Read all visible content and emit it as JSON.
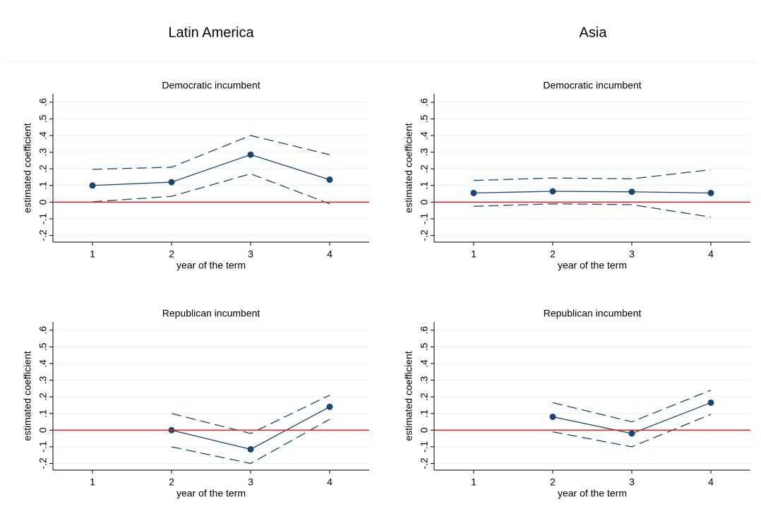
{
  "column_titles": [
    "Latin America",
    "Asia"
  ],
  "chart_data": [
    {
      "type": "line",
      "title": "Democratic incumbent",
      "x_label": "year of the term",
      "y_label": "estimated coefficient",
      "x": [
        1,
        2,
        3,
        4
      ],
      "xlim": [
        0.5,
        4.5
      ],
      "xticks": [
        1,
        2,
        3,
        4
      ],
      "ylim": [
        -0.24,
        0.65
      ],
      "yticks": [
        {
          "value": -0.2,
          "label": "-.2"
        },
        {
          "value": -0.1,
          "label": "-.1"
        },
        0,
        {
          "value": 0.1,
          "label": ".1"
        },
        {
          "value": 0.2,
          "label": ".2"
        },
        {
          "value": 0.3,
          "label": ".3"
        },
        {
          "value": 0.4,
          "label": ".4"
        },
        {
          "value": 0.5,
          "label": ".5"
        },
        {
          "value": 0.6,
          "label": ".6"
        }
      ],
      "grid": true,
      "hline": 0,
      "hline_color": "#e8191f",
      "series": [
        {
          "color": "#1a476f",
          "style": "dashed",
          "values": [
            0.197,
            0.21,
            0.4,
            0.285
          ]
        },
        {
          "color": "#1a476f",
          "style": "solid",
          "markers": true,
          "values": [
            0.1,
            0.12,
            0.285,
            0.135
          ]
        },
        {
          "color": "#1a476f",
          "style": "dashed",
          "values": [
            0.002,
            0.035,
            0.17,
            -0.01
          ]
        }
      ]
    },
    {
      "type": "line",
      "title": "Democratic incumbent",
      "x_label": "year of the term",
      "y_label": "estimated coefficient",
      "x": [
        1,
        2,
        3,
        4
      ],
      "xlim": [
        0.5,
        4.5
      ],
      "xticks": [
        1,
        2,
        3,
        4
      ],
      "ylim": [
        -0.24,
        0.65
      ],
      "yticks": [
        {
          "value": -0.2,
          "label": "-.2"
        },
        {
          "value": -0.1,
          "label": "-.1"
        },
        0,
        {
          "value": 0.1,
          "label": ".1"
        },
        {
          "value": 0.2,
          "label": ".2"
        },
        {
          "value": 0.3,
          "label": ".3"
        },
        {
          "value": 0.4,
          "label": ".4"
        },
        {
          "value": 0.5,
          "label": ".5"
        },
        {
          "value": 0.6,
          "label": ".6"
        }
      ],
      "grid": true,
      "hline": 0,
      "hline_color": "#e8191f",
      "series": [
        {
          "color": "#1a476f",
          "style": "dashed",
          "values": [
            0.13,
            0.145,
            0.14,
            0.195
          ]
        },
        {
          "color": "#1a476f",
          "style": "solid",
          "markers": true,
          "values": [
            0.055,
            0.065,
            0.062,
            0.055
          ]
        },
        {
          "color": "#1a476f",
          "style": "dashed",
          "values": [
            -0.025,
            -0.01,
            -0.015,
            -0.09
          ]
        }
      ]
    },
    {
      "type": "line",
      "title": "Republican incumbent",
      "x_label": "year of the term",
      "y_label": "estimated coefficient",
      "x": [
        1,
        2,
        3,
        4
      ],
      "xlim": [
        0.5,
        4.5
      ],
      "xticks": [
        1,
        2,
        3,
        4
      ],
      "ylim": [
        -0.24,
        0.65
      ],
      "yticks": [
        {
          "value": -0.2,
          "label": "-.2"
        },
        {
          "value": -0.1,
          "label": "-.1"
        },
        0,
        {
          "value": 0.1,
          "label": ".1"
        },
        {
          "value": 0.2,
          "label": ".2"
        },
        {
          "value": 0.3,
          "label": ".3"
        },
        {
          "value": 0.4,
          "label": ".4"
        },
        {
          "value": 0.5,
          "label": ".5"
        },
        {
          "value": 0.6,
          "label": ".6"
        }
      ],
      "grid": true,
      "hline": 0,
      "hline_color": "#e8191f",
      "series": [
        {
          "color": "#1a476f",
          "style": "dashed",
          "values": [
            null,
            0.1,
            -0.02,
            0.21
          ]
        },
        {
          "color": "#1a476f",
          "style": "solid",
          "markers": true,
          "values": [
            null,
            0.0,
            -0.115,
            0.14
          ]
        },
        {
          "color": "#1a476f",
          "style": "dashed",
          "values": [
            null,
            -0.1,
            -0.2,
            0.065
          ]
        }
      ]
    },
    {
      "type": "line",
      "title": "Republican incumbent",
      "x_label": "year of the term",
      "y_label": "estimated coefficient",
      "x": [
        1,
        2,
        3,
        4
      ],
      "xlim": [
        0.5,
        4.5
      ],
      "xticks": [
        1,
        2,
        3,
        4
      ],
      "ylim": [
        -0.24,
        0.65
      ],
      "yticks": [
        {
          "value": -0.2,
          "label": "-.2"
        },
        {
          "value": -0.1,
          "label": "-.1"
        },
        0,
        {
          "value": 0.1,
          "label": ".1"
        },
        {
          "value": 0.2,
          "label": ".2"
        },
        {
          "value": 0.3,
          "label": ".3"
        },
        {
          "value": 0.4,
          "label": ".4"
        },
        {
          "value": 0.5,
          "label": ".5"
        },
        {
          "value": 0.6,
          "label": ".6"
        }
      ],
      "grid": true,
      "hline": 0,
      "hline_color": "#e8191f",
      "series": [
        {
          "color": "#1a476f",
          "style": "dashed",
          "values": [
            null,
            0.165,
            0.05,
            0.24
          ]
        },
        {
          "color": "#1a476f",
          "style": "solid",
          "markers": true,
          "values": [
            null,
            0.08,
            -0.02,
            0.165
          ]
        },
        {
          "color": "#1a476f",
          "style": "dashed",
          "values": [
            null,
            -0.01,
            -0.1,
            0.095
          ]
        }
      ]
    }
  ]
}
